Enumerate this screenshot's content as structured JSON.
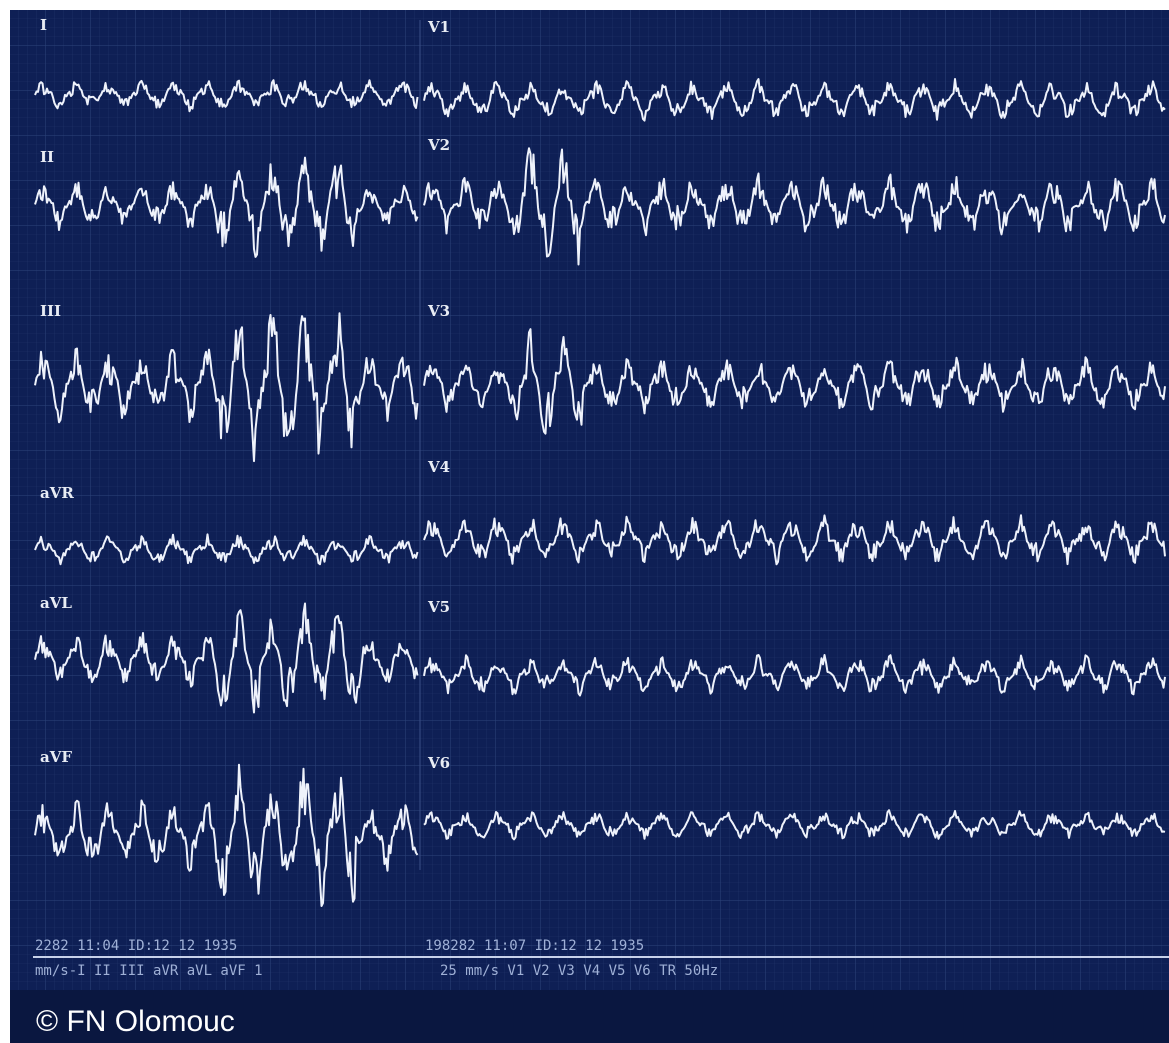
{
  "leads_left": [
    "I",
    "II",
    "III",
    "aVR",
    "aVL",
    "aVF"
  ],
  "leads_right": [
    "V1",
    "V2",
    "V3",
    "V4",
    "V5",
    "V6"
  ],
  "footer": {
    "timestamp_left": "2282 11:04 ID:12 12 1935",
    "timestamp_right": "198282 11:07 ID:12 12 1935",
    "settings_left": "mm/s-I II III aVR aVL aVF 1",
    "settings_right": "25 mm/s V1 V2 V3 V4 V5 V6 TR 50Hz"
  },
  "copyright": "© FN Olomouc"
}
